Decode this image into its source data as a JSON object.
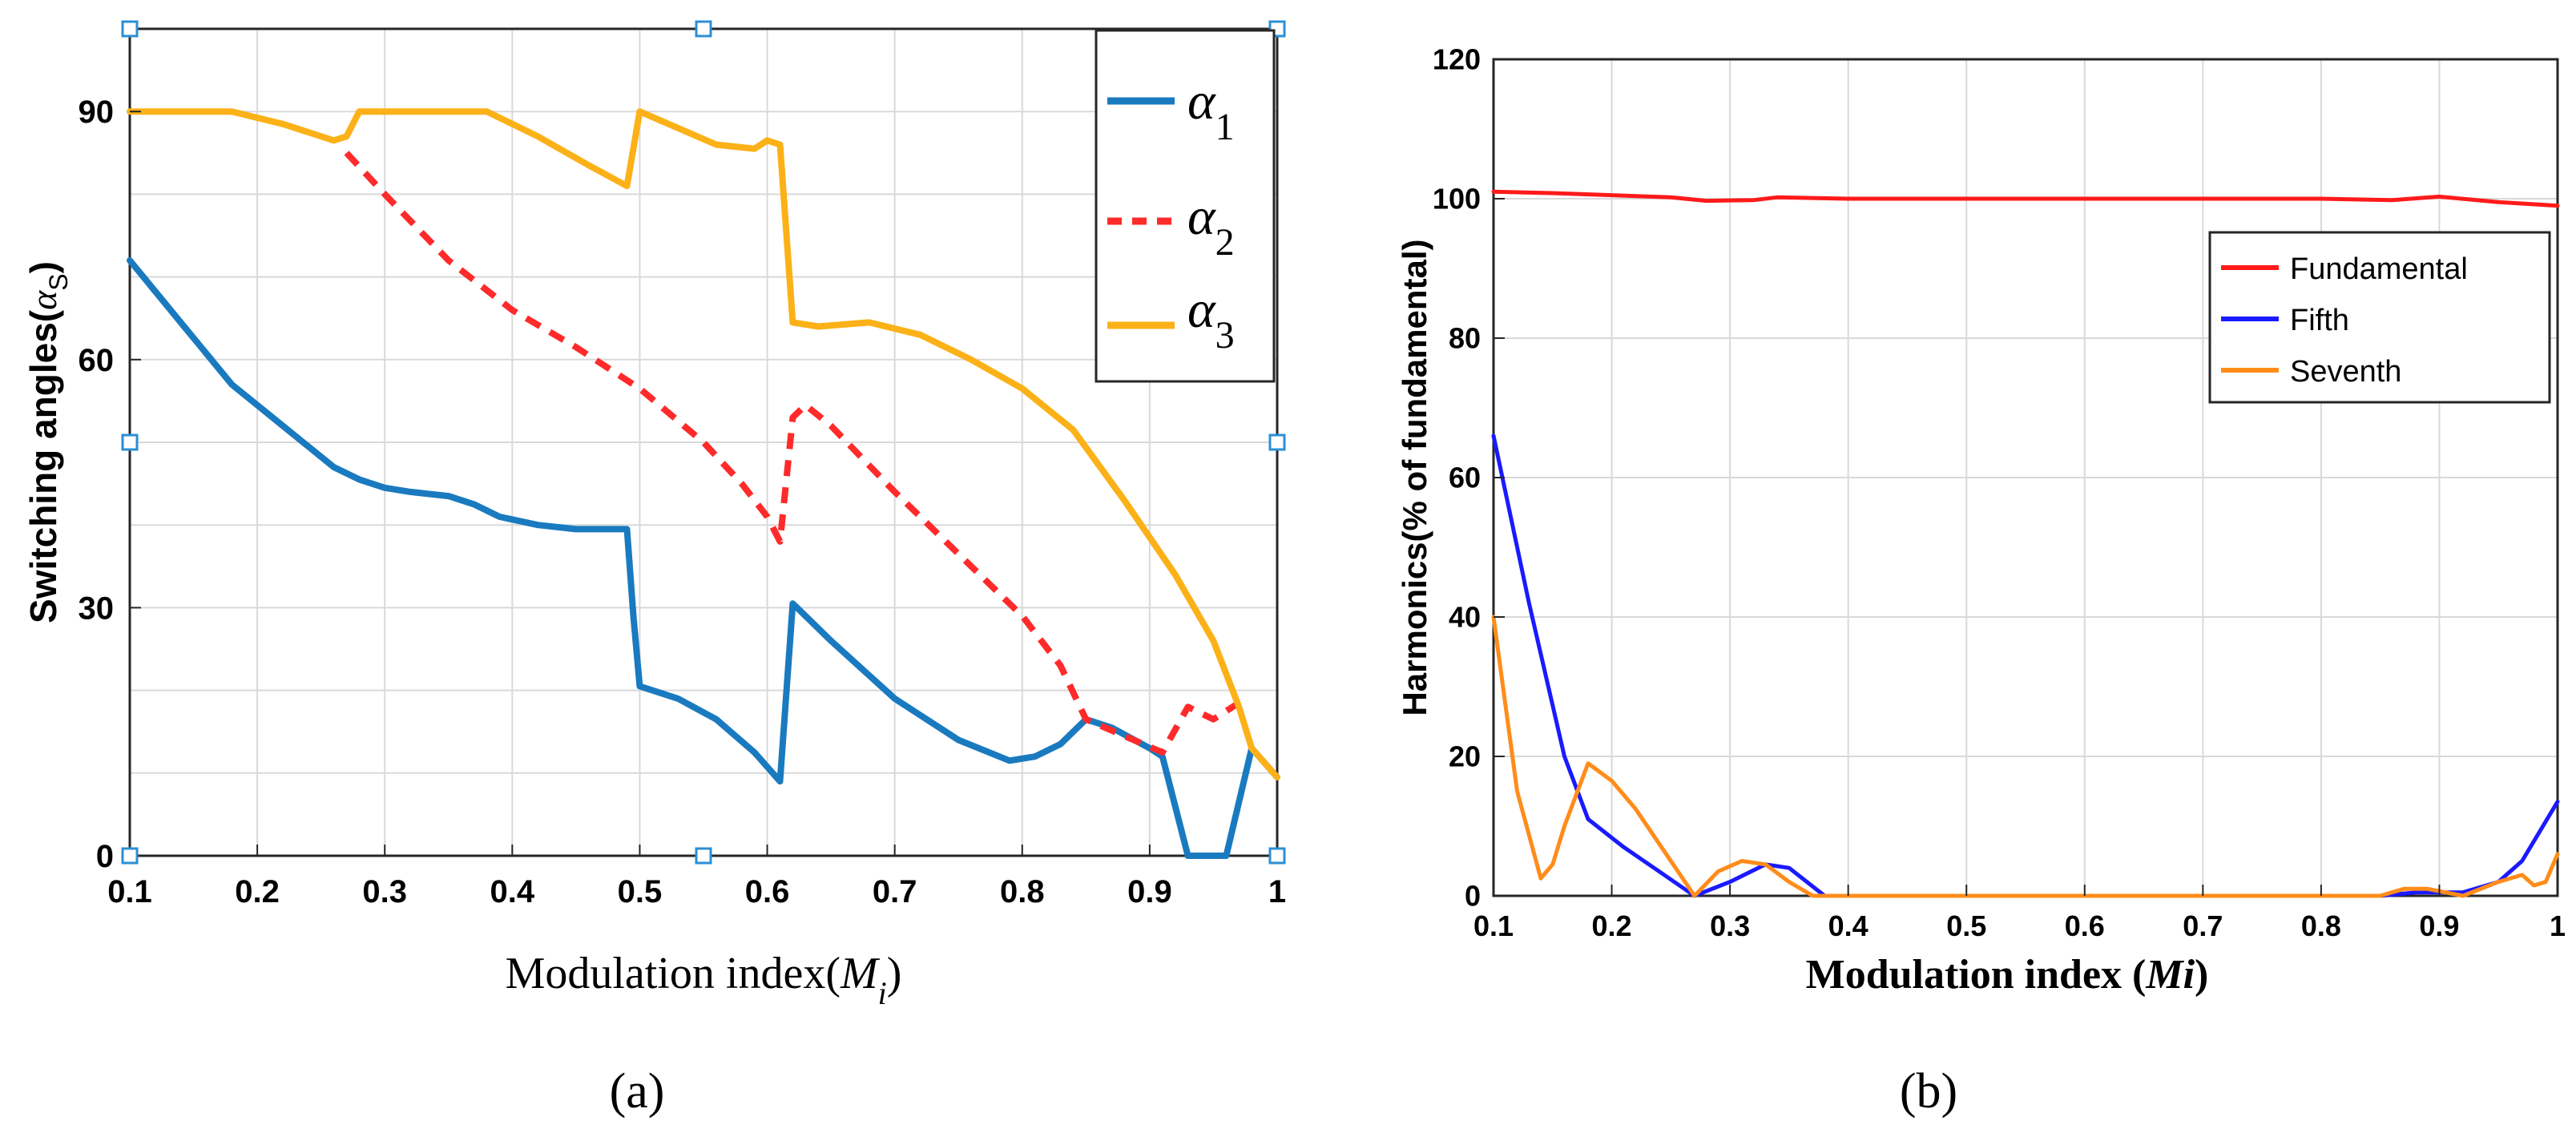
{
  "chart_data": [
    {
      "type": "line",
      "panel_label": "(a)",
      "xlabel": "Modulation index(",
      "xlabel_var": "M",
      "xlabel_sub": "i",
      "xlabel_close": ")",
      "ylabel": "Switching angles(",
      "ylabel_var": "α",
      "ylabel_sub": "S",
      "ylabel_close": ")",
      "xlim": [
        0.1,
        1
      ],
      "ylim": [
        0,
        100
      ],
      "xticks": [
        "0.1",
        "0.2",
        "0.3",
        "0.4",
        "0.5",
        "0.6",
        "0.7",
        "0.8",
        "0.9",
        "1"
      ],
      "yticks": [
        "0",
        "30",
        "60",
        "90"
      ],
      "grid": true,
      "legend_position": "top-right",
      "series": [
        {
          "name": "α1",
          "symbol": "α",
          "sub": "1",
          "color": "#1a7abf",
          "dash": "solid",
          "x": [
            0.1,
            0.14,
            0.18,
            0.22,
            0.26,
            0.28,
            0.3,
            0.32,
            0.35,
            0.37,
            0.39,
            0.42,
            0.45,
            0.49,
            0.495,
            0.5,
            0.53,
            0.56,
            0.59,
            0.61,
            0.62,
            0.65,
            0.7,
            0.75,
            0.79,
            0.81,
            0.83,
            0.85,
            0.87,
            0.9,
            0.91,
            0.93,
            0.96,
            0.98,
            1
          ],
          "y": [
            72,
            64.5,
            57,
            52,
            47,
            45.5,
            44.5,
            44,
            43.5,
            42.5,
            41,
            40,
            39.5,
            39.5,
            29,
            20.5,
            19,
            16.5,
            12.5,
            9,
            30.5,
            26,
            19,
            14,
            11.5,
            12,
            13.5,
            16.5,
            15.5,
            13,
            12,
            0,
            0,
            13,
            9.5
          ]
        },
        {
          "name": "α2",
          "symbol": "α",
          "sub": "2",
          "color": "#ff2a2a",
          "dash": "dashed",
          "x": [
            0.27,
            0.3,
            0.35,
            0.4,
            0.45,
            0.5,
            0.55,
            0.58,
            0.6,
            0.61,
            0.62,
            0.63,
            0.65,
            0.7,
            0.75,
            0.8,
            0.83,
            0.85,
            0.88,
            0.91,
            0.93,
            0.95,
            0.97
          ],
          "y": [
            85,
            80,
            72,
            66,
            61.5,
            56.5,
            50,
            45,
            41,
            38,
            53,
            54.5,
            52,
            44,
            36.5,
            29,
            23,
            16.5,
            14.5,
            12.5,
            18,
            16.5,
            18.5
          ]
        },
        {
          "name": "α3",
          "symbol": "α",
          "sub": "3",
          "color": "#fbb117",
          "dash": "solid",
          "x": [
            0.1,
            0.18,
            0.22,
            0.26,
            0.27,
            0.28,
            0.32,
            0.38,
            0.42,
            0.46,
            0.49,
            0.5,
            0.53,
            0.56,
            0.59,
            0.6,
            0.61,
            0.62,
            0.64,
            0.68,
            0.72,
            0.76,
            0.8,
            0.84,
            0.88,
            0.92,
            0.95,
            0.97,
            0.98,
            1
          ],
          "y": [
            90,
            90,
            88.5,
            86.5,
            87,
            90,
            90,
            90,
            87,
            83.5,
            81,
            90,
            88,
            86,
            85.5,
            86.5,
            86,
            64.5,
            64,
            64.5,
            63,
            60,
            56.5,
            51.5,
            43,
            34,
            26,
            18,
            13,
            9.5
          ]
        }
      ]
    },
    {
      "type": "line",
      "panel_label": "(b)",
      "xlabel": "Modulation index (",
      "xlabel_var": "Mi",
      "xlabel_close": ")",
      "ylabel": "Harmonics(% of fundamental)",
      "xlim": [
        0.1,
        1
      ],
      "ylim": [
        0,
        120
      ],
      "xticks": [
        "0.1",
        "0.2",
        "0.3",
        "0.4",
        "0.5",
        "0.6",
        "0.7",
        "0.8",
        "0.9",
        "1"
      ],
      "yticks": [
        "0",
        "20",
        "40",
        "60",
        "80",
        "100",
        "120"
      ],
      "grid": true,
      "legend_position": "top-right",
      "series": [
        {
          "name": "Fundamental",
          "color": "#ff1a1a",
          "x": [
            0.1,
            0.15,
            0.2,
            0.25,
            0.28,
            0.32,
            0.34,
            0.4,
            0.5,
            0.6,
            0.7,
            0.8,
            0.86,
            0.9,
            0.95,
            1
          ],
          "y": [
            101,
            100.8,
            100.5,
            100.2,
            99.7,
            99.8,
            100.2,
            100,
            100,
            100,
            100,
            100,
            99.8,
            100.3,
            99.5,
            99
          ]
        },
        {
          "name": "Fifth",
          "color": "#1a1aff",
          "x": [
            0.1,
            0.13,
            0.16,
            0.18,
            0.21,
            0.24,
            0.27,
            0.3,
            0.33,
            0.35,
            0.38,
            0.5,
            0.7,
            0.85,
            0.88,
            0.9,
            0.92,
            0.95,
            0.97,
            1
          ],
          "y": [
            66,
            42,
            20,
            11,
            7,
            3.5,
            0,
            2,
            4.5,
            4,
            0,
            0,
            0,
            0,
            0.5,
            0.5,
            0.5,
            2,
            5,
            13.5
          ]
        },
        {
          "name": "Seventh",
          "color": "#ff8c1a",
          "x": [
            0.1,
            0.12,
            0.14,
            0.15,
            0.16,
            0.18,
            0.2,
            0.22,
            0.24,
            0.27,
            0.29,
            0.31,
            0.33,
            0.35,
            0.37,
            0.4,
            0.5,
            0.7,
            0.85,
            0.87,
            0.89,
            0.92,
            0.95,
            0.97,
            0.98,
            0.99,
            1
          ],
          "y": [
            40,
            15,
            2.5,
            4.5,
            10,
            19,
            16.5,
            12.5,
            7.5,
            0,
            3.5,
            5,
            4.5,
            2,
            0,
            0,
            0,
            0,
            0,
            1,
            1,
            0,
            2,
            3,
            1.5,
            2,
            6
          ]
        }
      ]
    }
  ]
}
